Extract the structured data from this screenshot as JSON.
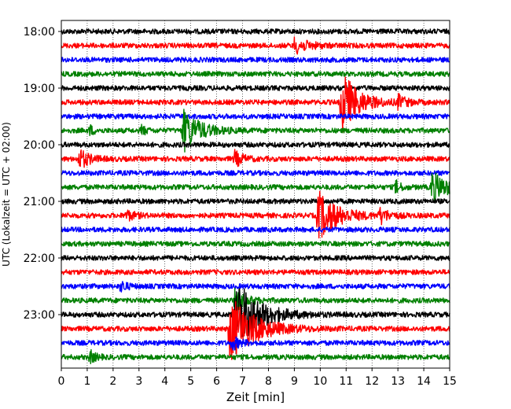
{
  "chart_data": {
    "type": "line",
    "title": "",
    "xlabel": "Zeit  [min]",
    "ylabel": "UTC (Lokalzeit = UTC + 02:00)",
    "xlim": [
      0,
      15
    ],
    "x_ticks": [
      0,
      1,
      2,
      3,
      4,
      5,
      6,
      7,
      8,
      9,
      10,
      11,
      12,
      13,
      14,
      15
    ],
    "y_tick_labels": [
      "18:00",
      "19:00",
      "20:00",
      "21:00",
      "22:00",
      "23:00"
    ],
    "row_interval_min": 15,
    "start_time": "18:00",
    "grid": "vertical-dotted",
    "colors": [
      "#000000",
      "#ff0000",
      "#0000ff",
      "#008000"
    ],
    "traces": [
      {
        "start": "18:00",
        "color": "#000000",
        "events": []
      },
      {
        "start": "18:15",
        "color": "#ff0000",
        "events": [
          {
            "t": 9.0,
            "amp": 0.6,
            "dur": 0.5
          }
        ]
      },
      {
        "start": "18:30",
        "color": "#0000ff",
        "events": []
      },
      {
        "start": "18:45",
        "color": "#008000",
        "events": []
      },
      {
        "start": "19:00",
        "color": "#000000",
        "events": []
      },
      {
        "start": "19:15",
        "color": "#ff0000",
        "events": [
          {
            "t": 10.8,
            "amp": 2.6,
            "dur": 0.6
          },
          {
            "t": 13.0,
            "amp": 0.5,
            "dur": 0.3
          }
        ]
      },
      {
        "start": "19:30",
        "color": "#0000ff",
        "events": []
      },
      {
        "start": "19:45",
        "color": "#008000",
        "events": [
          {
            "t": 4.7,
            "amp": 1.7,
            "dur": 0.6
          },
          {
            "t": 1.1,
            "amp": 0.4,
            "dur": 0.15
          },
          {
            "t": 3.1,
            "amp": 0.4,
            "dur": 0.15
          }
        ]
      },
      {
        "start": "20:00",
        "color": "#000000",
        "events": []
      },
      {
        "start": "20:15",
        "color": "#ff0000",
        "events": [
          {
            "t": 0.7,
            "amp": 0.8,
            "dur": 0.35
          },
          {
            "t": 6.7,
            "amp": 0.6,
            "dur": 0.3
          }
        ]
      },
      {
        "start": "20:30",
        "color": "#0000ff",
        "events": []
      },
      {
        "start": "20:45",
        "color": "#008000",
        "events": [
          {
            "t": 14.3,
            "amp": 1.2,
            "dur": 0.6
          },
          {
            "t": 12.9,
            "amp": 0.5,
            "dur": 0.2
          }
        ]
      },
      {
        "start": "21:00",
        "color": "#000000",
        "events": []
      },
      {
        "start": "21:15",
        "color": "#ff0000",
        "events": [
          {
            "t": 9.9,
            "amp": 2.0,
            "dur": 0.7
          },
          {
            "t": 12.3,
            "amp": 0.6,
            "dur": 0.3
          },
          {
            "t": 2.5,
            "amp": 0.4,
            "dur": 0.3
          }
        ]
      },
      {
        "start": "21:30",
        "color": "#0000ff",
        "events": []
      },
      {
        "start": "21:45",
        "color": "#008000",
        "events": []
      },
      {
        "start": "22:00",
        "color": "#000000",
        "events": []
      },
      {
        "start": "22:15",
        "color": "#ff0000",
        "events": []
      },
      {
        "start": "22:30",
        "color": "#0000ff",
        "events": [
          {
            "t": 2.3,
            "amp": 0.5,
            "dur": 0.2
          }
        ]
      },
      {
        "start": "22:45",
        "color": "#008000",
        "events": [
          {
            "t": 6.7,
            "amp": 0.8,
            "dur": 0.4
          }
        ]
      },
      {
        "start": "23:00",
        "color": "#000000",
        "events": [
          {
            "t": 6.75,
            "amp": 3.0,
            "dur": 0.8
          }
        ]
      },
      {
        "start": "23:15",
        "color": "#ff0000",
        "events": [
          {
            "t": 6.5,
            "amp": 2.6,
            "dur": 0.9
          }
        ]
      },
      {
        "start": "23:30",
        "color": "#0000ff",
        "events": [
          {
            "t": 6.6,
            "amp": 0.5,
            "dur": 0.3
          }
        ]
      },
      {
        "start": "23:45",
        "color": "#008000",
        "events": [
          {
            "t": 1.1,
            "amp": 0.5,
            "dur": 0.2
          }
        ]
      }
    ]
  }
}
